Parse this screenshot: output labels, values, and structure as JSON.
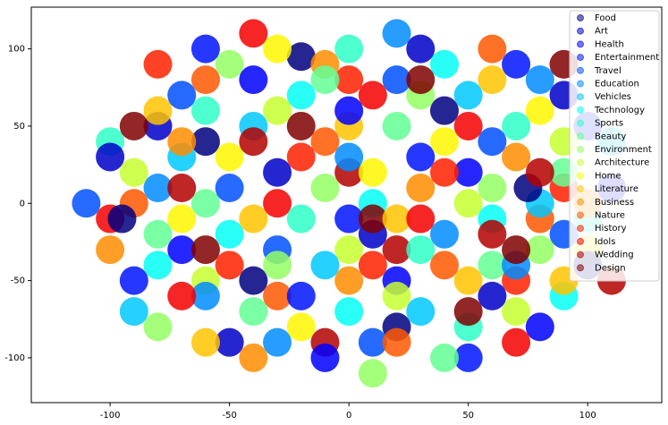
{
  "chart_data": {
    "type": "scatter",
    "xlim": [
      -133,
      131
    ],
    "ylim": [
      -129,
      127
    ],
    "xticks": [
      -100,
      -50,
      0,
      50,
      100
    ],
    "yticks": [
      -100,
      -50,
      0,
      50,
      100
    ],
    "legend": "upper right",
    "series": [
      {
        "name": "Food",
        "color": "#00007f",
        "x": [
          -60,
          20,
          75,
          -20,
          100,
          -95,
          40,
          -40
        ],
        "y": [
          40,
          -80,
          10,
          95,
          -40,
          -10,
          60,
          -50
        ]
      },
      {
        "name": "Art",
        "color": "#0000c8",
        "x": [
          -30,
          60,
          -80,
          10,
          90,
          -50,
          30,
          -100
        ],
        "y": [
          20,
          -60,
          50,
          -20,
          70,
          -90,
          100,
          30
        ]
      },
      {
        "name": "Health",
        "color": "#0000ff",
        "x": [
          0,
          -70,
          50,
          -10,
          80,
          -40,
          110,
          20
        ],
        "y": [
          60,
          -30,
          20,
          -100,
          -80,
          80,
          10,
          -50
        ]
      },
      {
        "name": "Entertainment",
        "color": "#0014ff",
        "x": [
          -90,
          30,
          -20,
          70,
          -60,
          100,
          0,
          50
        ],
        "y": [
          -50,
          30,
          -60,
          90,
          100,
          50,
          -10,
          -100
        ]
      },
      {
        "name": "Travel",
        "color": "#0050ff",
        "x": [
          -110,
          60,
          -30,
          20,
          -70,
          90,
          10,
          -50
        ],
        "y": [
          0,
          40,
          -30,
          80,
          70,
          -20,
          -90,
          10
        ]
      },
      {
        "name": "Education",
        "color": "#008cff",
        "x": [
          40,
          -80,
          0,
          70,
          -30,
          80,
          -60,
          20
        ],
        "y": [
          -20,
          10,
          30,
          -40,
          -90,
          80,
          -60,
          110
        ]
      },
      {
        "name": "Vehicles",
        "color": "#00c8ff",
        "x": [
          -40,
          80,
          -10,
          50,
          -90,
          30,
          -70,
          110
        ],
        "y": [
          50,
          0,
          -40,
          70,
          -70,
          -70,
          30,
          40
        ]
      },
      {
        "name": "Technology",
        "color": "#03fff4",
        "x": [
          10,
          -50,
          60,
          -20,
          90,
          -80,
          40,
          0
        ],
        "y": [
          0,
          -20,
          -10,
          70,
          -60,
          -40,
          90,
          -70
        ]
      },
      {
        "name": "Sports",
        "color": "#2fffc7",
        "x": [
          -20,
          70,
          -60,
          30,
          -100,
          50,
          0,
          100
        ],
        "y": [
          -10,
          50,
          60,
          -30,
          40,
          -80,
          100,
          -10
        ]
      },
      {
        "name": "Beauty",
        "color": "#63ff94",
        "x": [
          20,
          -80,
          90,
          -40,
          60,
          -10,
          -60,
          40
        ],
        "y": [
          50,
          -20,
          20,
          -70,
          -40,
          80,
          0,
          -100
        ]
      },
      {
        "name": "Environment",
        "color": "#94ff63",
        "x": [
          -10,
          80,
          -50,
          30,
          -80,
          60,
          -30,
          10
        ],
        "y": [
          10,
          -30,
          90,
          70,
          -80,
          10,
          -40,
          -110
        ]
      },
      {
        "name": "Architecture",
        "color": "#c7ff2f",
        "x": [
          50,
          -60,
          0,
          -30,
          90,
          20,
          -90,
          70
        ],
        "y": [
          0,
          -50,
          -30,
          60,
          40,
          -60,
          20,
          -70
        ]
      },
      {
        "name": "Home",
        "color": "#fff700",
        "x": [
          -50,
          40,
          -20,
          80,
          -70,
          10,
          100,
          -30
        ],
        "y": [
          30,
          40,
          -80,
          60,
          -10,
          20,
          -30,
          100
        ]
      },
      {
        "name": "Literature",
        "color": "#ffc400",
        "x": [
          -40,
          20,
          60,
          -80,
          50,
          0,
          -60,
          90
        ],
        "y": [
          -10,
          -10,
          80,
          60,
          -50,
          50,
          -90,
          -50
        ]
      },
      {
        "name": "Business",
        "color": "#ff8d00",
        "x": [
          30,
          -70,
          0,
          70,
          -40,
          -10,
          100,
          -100
        ],
        "y": [
          10,
          40,
          -50,
          30,
          -100,
          90,
          0,
          -30
        ]
      },
      {
        "name": "Nature",
        "color": "#ff5800",
        "x": [
          -60,
          40,
          -10,
          80,
          -90,
          20,
          60,
          -30
        ],
        "y": [
          80,
          -40,
          40,
          -10,
          0,
          -90,
          100,
          -60
        ]
      },
      {
        "name": "History",
        "color": "#ff2100",
        "x": [
          0,
          -50,
          70,
          -20,
          40,
          -80,
          90,
          10
        ],
        "y": [
          80,
          -40,
          -50,
          30,
          20,
          90,
          10,
          -40
        ]
      },
      {
        "name": "Idols",
        "color": "#f50000",
        "x": [
          -70,
          50,
          -30,
          10,
          -100,
          70,
          30,
          -40
        ],
        "y": [
          -60,
          50,
          0,
          70,
          -10,
          -90,
          -10,
          110
        ]
      },
      {
        "name": "Wedding",
        "color": "#b40000",
        "x": [
          20,
          -40,
          80,
          -10,
          60,
          -70,
          0,
          110
        ],
        "y": [
          -30,
          40,
          20,
          -90,
          -20,
          10,
          20,
          -50
        ]
      },
      {
        "name": "Design",
        "color": "#800000",
        "x": [
          -20,
          50,
          -60,
          90,
          30,
          -90,
          10,
          70
        ],
        "y": [
          50,
          -70,
          -30,
          90,
          80,
          50,
          -10,
          -30
        ]
      }
    ]
  }
}
